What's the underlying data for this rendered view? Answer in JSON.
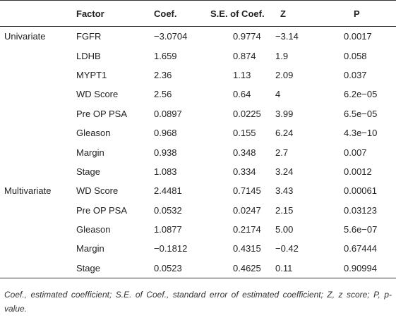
{
  "table": {
    "header": [
      "",
      "Factor",
      "Coef.",
      "S.E. of Coef.",
      "Z",
      "P"
    ],
    "rows": [
      [
        "Univariate",
        "FGFR",
        "−3.0704",
        "0.9774",
        "−3.14",
        "0.0017"
      ],
      [
        null,
        "LDHB",
        "1.659",
        "0.874",
        "1.9",
        "0.058"
      ],
      [
        null,
        "MYPT1",
        "2.36",
        "1.13",
        "2.09",
        "0.037"
      ],
      [
        null,
        "WD Score",
        "2.56",
        "0.64",
        "4",
        "6.2e−05"
      ],
      [
        null,
        "Pre OP PSA",
        "0.0897",
        "0.0225",
        "3.99",
        "6.5e−05"
      ],
      [
        null,
        "Gleason",
        "0.968",
        "0.155",
        "6.24",
        "4.3e−10"
      ],
      [
        null,
        "Margin",
        "0.938",
        "0.348",
        "2.7",
        "0.007"
      ],
      [
        null,
        "Stage",
        "1.083",
        "0.334",
        "3.24",
        "0.0012"
      ],
      [
        "Multivariate",
        "WD Score",
        "2.4481",
        "0.7145",
        "3.43",
        "0.00061"
      ],
      [
        null,
        "Pre OP PSA",
        "0.0532",
        "0.0247",
        "2.15",
        "0.03123"
      ],
      [
        null,
        "Gleason",
        "1.0877",
        "0.2174",
        "5.00",
        "5.6e−07"
      ],
      [
        null,
        "Margin",
        "−0.1812",
        "0.4315",
        "−0.42",
        "0.67444"
      ],
      [
        null,
        "Stage",
        "0.0523",
        "0.4625",
        "0.11",
        "0.90994"
      ]
    ],
    "footnote": "Coef., estimated coefficient; S.E. of Coef., standard error of estimated coefficient; Z, z score; P, p-value."
  }
}
